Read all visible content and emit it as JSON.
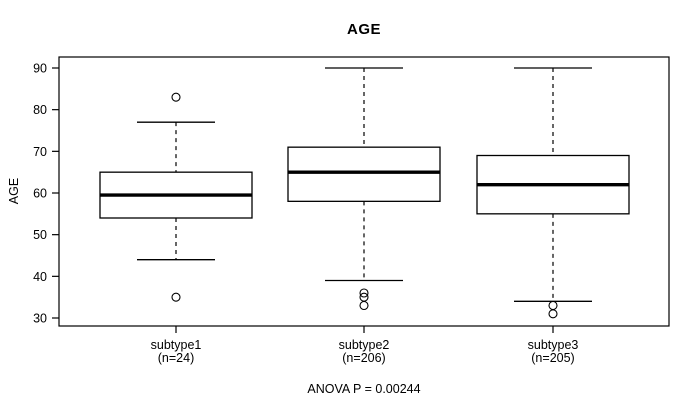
{
  "chart_data": {
    "type": "boxplot",
    "title": "AGE",
    "ylabel": "AGE",
    "xlabel": "",
    "footer": "ANOVA P = 0.00244",
    "ylim": [
      27,
      93
    ],
    "yticks": [
      30,
      40,
      50,
      60,
      70,
      80,
      90
    ],
    "grid": false,
    "legend": "none",
    "series": [
      {
        "label": "subtype1",
        "n_label": "(n=24)",
        "n": 24,
        "lower_outliers": [
          35
        ],
        "whisker_low": 44,
        "q1": 54,
        "median": 59.5,
        "q3": 65,
        "whisker_high": 77,
        "upper_outliers": [
          83
        ]
      },
      {
        "label": "subtype2",
        "n_label": "(n=206)",
        "n": 206,
        "lower_outliers": [
          36,
          35,
          33
        ],
        "whisker_low": 39,
        "q1": 58,
        "median": 65,
        "q3": 71,
        "whisker_high": 90,
        "upper_outliers": []
      },
      {
        "label": "subtype3",
        "n_label": "(n=205)",
        "n": 205,
        "lower_outliers": [
          33,
          31
        ],
        "whisker_low": 34,
        "q1": 55,
        "median": 62,
        "q3": 69,
        "whisker_high": 90,
        "upper_outliers": []
      }
    ],
    "colors": {
      "line": "#000000",
      "box_fill": "#ffffff",
      "background": "#ffffff"
    }
  }
}
